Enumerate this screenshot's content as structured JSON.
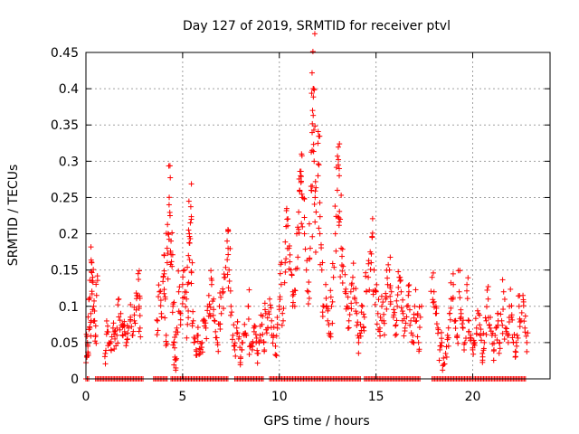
{
  "chart_data": {
    "type": "scatter",
    "title": "Day 127 of 2019, SRMTID for receiver ptvl",
    "xlabel": "GPS time / hours",
    "ylabel": "SRMTID / TECUs",
    "xlim": [
      0,
      24
    ],
    "ylim": [
      0,
      0.45
    ],
    "xticks": [
      0,
      5,
      10,
      15,
      20
    ],
    "xtick_labels": [
      "0",
      "5",
      "10",
      "15",
      "20"
    ],
    "yticks": [
      0,
      0.05,
      0.1,
      0.15,
      0.2,
      0.25,
      0.3,
      0.35,
      0.4,
      0.45
    ],
    "ytick_labels": [
      "0",
      "0.05",
      "0.1",
      "0.15",
      "0.2",
      "0.25",
      "0.3",
      "0.35",
      "0.4",
      "0.45"
    ],
    "grid": true,
    "marker": "plus",
    "color": "#ff0000",
    "series": [
      {
        "name": "SRMTID",
        "points": [
          [
            0.05,
            0.03
          ],
          [
            0.08,
            0.05
          ],
          [
            0.1,
            0.045
          ],
          [
            0.15,
            0.11
          ],
          [
            0.2,
            0.07
          ],
          [
            0.25,
            0.09
          ],
          [
            0.3,
            0.16
          ],
          [
            0.32,
            0.135
          ],
          [
            0.35,
            0.14
          ],
          [
            0.4,
            0.1
          ],
          [
            0.45,
            0.08
          ],
          [
            0.5,
            0.06
          ],
          [
            0.55,
            0.115
          ],
          [
            1.0,
            0.035
          ],
          [
            1.1,
            0.065
          ],
          [
            1.2,
            0.05
          ],
          [
            1.3,
            0.04
          ],
          [
            1.4,
            0.07
          ],
          [
            1.5,
            0.055
          ],
          [
            1.6,
            0.06
          ],
          [
            1.7,
            0.11
          ],
          [
            1.8,
            0.09
          ],
          [
            1.9,
            0.075
          ],
          [
            2.0,
            0.065
          ],
          [
            2.1,
            0.05
          ],
          [
            2.2,
            0.07
          ],
          [
            2.3,
            0.085
          ],
          [
            2.4,
            0.06
          ],
          [
            2.5,
            0.08
          ],
          [
            2.6,
            0.095
          ],
          [
            2.7,
            0.145
          ],
          [
            2.75,
            0.1
          ],
          [
            2.8,
            0.07
          ],
          [
            3.7,
            0.08
          ],
          [
            3.8,
            0.12
          ],
          [
            3.9,
            0.09
          ],
          [
            4.0,
            0.14
          ],
          [
            4.05,
            0.17
          ],
          [
            4.1,
            0.11
          ],
          [
            4.15,
            0.06
          ],
          [
            4.2,
            0.18
          ],
          [
            4.25,
            0.2
          ],
          [
            4.3,
            0.24
          ],
          [
            4.35,
            0.225
          ],
          [
            4.4,
            0.19
          ],
          [
            4.45,
            0.155
          ],
          [
            4.5,
            0.1
          ],
          [
            4.55,
            0.05
          ],
          [
            4.6,
            0.03
          ],
          [
            4.65,
            0.015
          ],
          [
            4.7,
            0.07
          ],
          [
            4.8,
            0.12
          ],
          [
            4.9,
            0.09
          ],
          [
            5.0,
            0.13
          ],
          [
            5.1,
            0.15
          ],
          [
            5.2,
            0.11
          ],
          [
            5.25,
            0.075
          ],
          [
            5.3,
            0.17
          ],
          [
            5.35,
            0.2
          ],
          [
            5.4,
            0.215
          ],
          [
            5.45,
            0.22
          ],
          [
            5.5,
            0.16
          ],
          [
            5.55,
            0.08
          ],
          [
            5.6,
            0.05
          ],
          [
            5.7,
            0.04
          ],
          [
            5.8,
            0.06
          ],
          [
            5.9,
            0.035
          ],
          [
            6.0,
            0.05
          ],
          [
            6.1,
            0.08
          ],
          [
            6.2,
            0.07
          ],
          [
            6.3,
            0.1
          ],
          [
            6.4,
            0.09
          ],
          [
            6.5,
            0.13
          ],
          [
            6.6,
            0.11
          ],
          [
            6.7,
            0.065
          ],
          [
            6.8,
            0.05
          ],
          [
            6.9,
            0.1
          ],
          [
            7.0,
            0.09
          ],
          [
            7.1,
            0.12
          ],
          [
            7.2,
            0.14
          ],
          [
            7.3,
            0.19
          ],
          [
            7.35,
            0.18
          ],
          [
            7.4,
            0.15
          ],
          [
            7.5,
            0.1
          ],
          [
            7.6,
            0.06
          ],
          [
            7.7,
            0.04
          ],
          [
            7.8,
            0.07
          ],
          [
            7.9,
            0.055
          ],
          [
            8.0,
            0.03
          ],
          [
            8.1,
            0.05
          ],
          [
            8.2,
            0.075
          ],
          [
            8.3,
            0.06
          ],
          [
            8.4,
            0.1
          ],
          [
            8.5,
            0.045
          ],
          [
            8.6,
            0.04
          ],
          [
            8.7,
            0.065
          ],
          [
            8.8,
            0.05
          ],
          [
            8.9,
            0.035
          ],
          [
            9.0,
            0.06
          ],
          [
            9.1,
            0.075
          ],
          [
            9.2,
            0.05
          ],
          [
            9.3,
            0.09
          ],
          [
            9.4,
            0.07
          ],
          [
            9.5,
            0.11
          ],
          [
            9.6,
            0.08
          ],
          [
            9.7,
            0.06
          ],
          [
            9.8,
            0.045
          ],
          [
            9.9,
            0.07
          ],
          [
            10.0,
            0.1
          ],
          [
            10.1,
            0.13
          ],
          [
            10.2,
            0.08
          ],
          [
            10.3,
            0.16
          ],
          [
            10.35,
            0.21
          ],
          [
            10.4,
            0.22
          ],
          [
            10.5,
            0.18
          ],
          [
            10.6,
            0.15
          ],
          [
            10.7,
            0.12
          ],
          [
            10.8,
            0.1
          ],
          [
            10.9,
            0.2
          ],
          [
            11.0,
            0.23
          ],
          [
            11.05,
            0.26
          ],
          [
            11.1,
            0.28
          ],
          [
            11.15,
            0.31
          ],
          [
            11.2,
            0.25
          ],
          [
            11.3,
            0.2
          ],
          [
            11.4,
            0.15
          ],
          [
            11.5,
            0.12
          ],
          [
            11.6,
            0.18
          ],
          [
            11.65,
            0.26
          ],
          [
            11.7,
            0.315
          ],
          [
            11.72,
            0.37
          ],
          [
            11.75,
            0.4
          ],
          [
            11.78,
            0.4
          ],
          [
            11.8,
            0.3
          ],
          [
            11.85,
            0.25
          ],
          [
            11.9,
            0.23
          ],
          [
            12.0,
            0.28
          ],
          [
            12.05,
            0.295
          ],
          [
            12.1,
            0.2
          ],
          [
            12.2,
            0.15
          ],
          [
            12.3,
            0.1
          ],
          [
            12.4,
            0.13
          ],
          [
            12.5,
            0.08
          ],
          [
            12.6,
            0.06
          ],
          [
            12.7,
            0.1
          ],
          [
            12.8,
            0.14
          ],
          [
            12.9,
            0.2
          ],
          [
            13.0,
            0.26
          ],
          [
            13.05,
            0.295
          ],
          [
            13.1,
            0.28
          ],
          [
            13.15,
            0.22
          ],
          [
            13.2,
            0.18
          ],
          [
            13.3,
            0.155
          ],
          [
            13.4,
            0.12
          ],
          [
            13.5,
            0.1
          ],
          [
            13.6,
            0.08
          ],
          [
            13.7,
            0.12
          ],
          [
            13.8,
            0.14
          ],
          [
            13.9,
            0.11
          ],
          [
            14.0,
            0.09
          ],
          [
            14.1,
            0.05
          ],
          [
            14.2,
            0.075
          ],
          [
            14.3,
            0.1
          ],
          [
            14.4,
            0.085
          ],
          [
            14.5,
            0.12
          ],
          [
            14.6,
            0.14
          ],
          [
            14.7,
            0.175
          ],
          [
            14.8,
            0.195
          ],
          [
            14.9,
            0.15
          ],
          [
            15.0,
            0.12
          ],
          [
            15.1,
            0.09
          ],
          [
            15.2,
            0.07
          ],
          [
            15.3,
            0.1
          ],
          [
            15.4,
            0.08
          ],
          [
            15.5,
            0.11
          ],
          [
            15.6,
            0.13
          ],
          [
            15.7,
            0.15
          ],
          [
            15.8,
            0.12
          ],
          [
            15.9,
            0.085
          ],
          [
            16.0,
            0.06
          ],
          [
            16.1,
            0.1
          ],
          [
            16.2,
            0.14
          ],
          [
            16.3,
            0.12
          ],
          [
            16.4,
            0.09
          ],
          [
            16.5,
            0.07
          ],
          [
            16.6,
            0.1
          ],
          [
            16.7,
            0.12
          ],
          [
            16.8,
            0.08
          ],
          [
            16.9,
            0.06
          ],
          [
            17.0,
            0.1
          ],
          [
            17.1,
            0.08
          ],
          [
            17.2,
            0.05
          ],
          [
            17.3,
            0.085
          ],
          [
            17.9,
            0.14
          ],
          [
            18.0,
            0.12
          ],
          [
            18.1,
            0.1
          ],
          [
            18.2,
            0.07
          ],
          [
            18.3,
            0.04
          ],
          [
            18.4,
            0.05
          ],
          [
            18.5,
            0.02
          ],
          [
            18.6,
            0.035
          ],
          [
            18.7,
            0.06
          ],
          [
            18.8,
            0.09
          ],
          [
            18.9,
            0.11
          ],
          [
            19.0,
            0.13
          ],
          [
            19.1,
            0.08
          ],
          [
            19.2,
            0.06
          ],
          [
            19.3,
            0.12
          ],
          [
            19.4,
            0.09
          ],
          [
            19.5,
            0.07
          ],
          [
            19.6,
            0.05
          ],
          [
            19.7,
            0.13
          ],
          [
            19.8,
            0.08
          ],
          [
            19.9,
            0.06
          ],
          [
            20.0,
            0.04
          ],
          [
            20.1,
            0.05
          ],
          [
            20.2,
            0.07
          ],
          [
            20.3,
            0.09
          ],
          [
            20.4,
            0.06
          ],
          [
            20.5,
            0.035
          ],
          [
            20.6,
            0.05
          ],
          [
            20.7,
            0.08
          ],
          [
            20.8,
            0.11
          ],
          [
            20.9,
            0.07
          ],
          [
            21.0,
            0.06
          ],
          [
            21.1,
            0.04
          ],
          [
            21.2,
            0.07
          ],
          [
            21.3,
            0.09
          ],
          [
            21.4,
            0.05
          ],
          [
            21.5,
            0.08
          ],
          [
            21.6,
            0.12
          ],
          [
            21.7,
            0.07
          ],
          [
            21.8,
            0.06
          ],
          [
            21.9,
            0.1
          ],
          [
            22.0,
            0.085
          ],
          [
            22.1,
            0.05
          ],
          [
            22.2,
            0.03
          ],
          [
            22.3,
            0.06
          ],
          [
            22.4,
            0.1
          ],
          [
            22.5,
            0.08
          ],
          [
            22.6,
            0.115
          ],
          [
            22.7,
            0.07
          ],
          [
            22.8,
            0.05
          ]
        ],
        "zero_segments": [
          [
            0.0,
            0.2
          ],
          [
            0.5,
            3.0
          ],
          [
            3.5,
            4.2
          ],
          [
            4.4,
            7.4
          ],
          [
            7.7,
            9.2
          ],
          [
            9.5,
            14.2
          ],
          [
            14.4,
            17.3
          ],
          [
            17.9,
            22.8
          ]
        ]
      }
    ]
  }
}
